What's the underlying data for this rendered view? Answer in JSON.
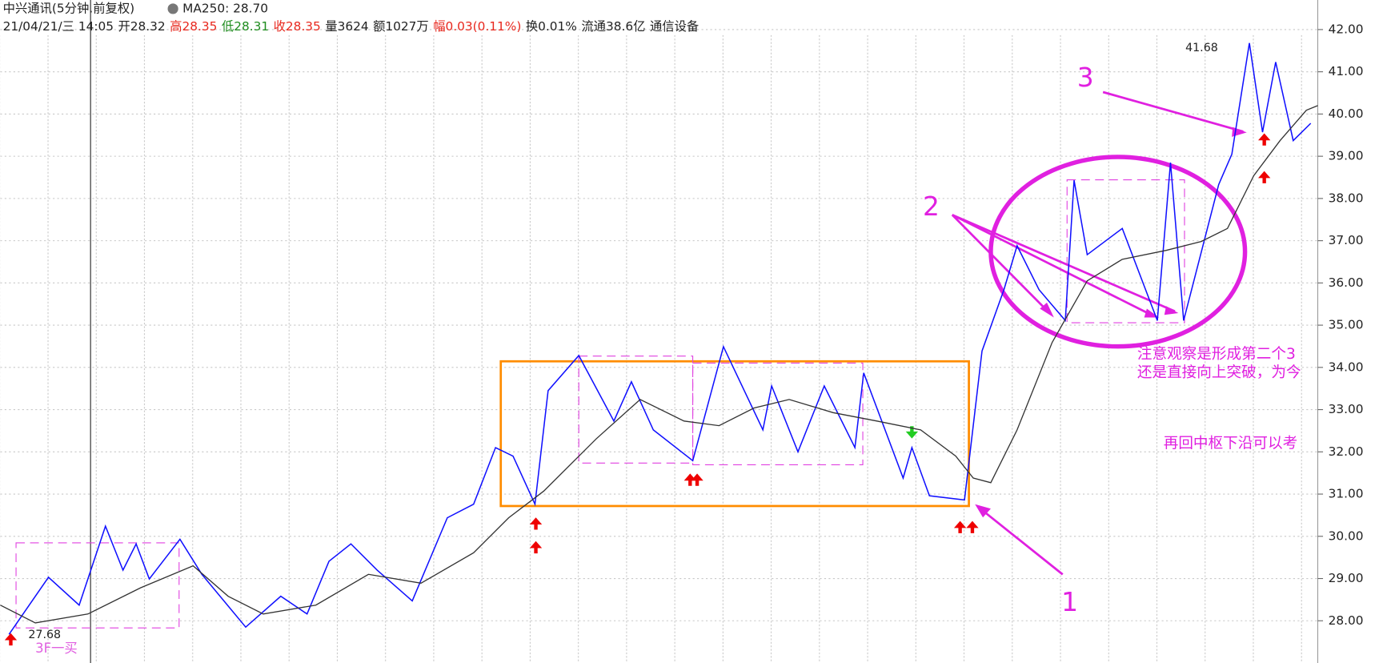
{
  "chart_data": {
    "type": "line",
    "title": "中兴通讯(5分钟.前复权)",
    "ma_label": "MA250: 28.70",
    "info": [
      {
        "text": "21/04/21/三 14:05",
        "color": "#222222"
      },
      {
        "text": "开28.32",
        "color": "#222222"
      },
      {
        "text": "高28.35",
        "color": "#e8281e"
      },
      {
        "text": "低28.31",
        "color": "#1e8c1e"
      },
      {
        "text": "收28.35",
        "color": "#e8281e"
      },
      {
        "text": "量3624",
        "color": "#222222"
      },
      {
        "text": "额1027万",
        "color": "#222222"
      },
      {
        "text": "幅0.03(0.11%)",
        "color": "#e8281e"
      },
      {
        "text": "换0.01%",
        "color": "#222222"
      },
      {
        "text": "流通38.6亿",
        "color": "#222222"
      },
      {
        "text": "通信设备",
        "color": "#222222"
      }
    ],
    "annotations": [
      "1",
      "2",
      "3",
      "注意观察是形成第二个3",
      "还是直接向上突破，为今",
      "再回中枢下沿可以考",
      "3F一买",
      "27.68",
      "41.68"
    ],
    "xlim": [
      0,
      1503
    ],
    "ylim": [
      27.0,
      42.7
    ],
    "yticks": [
      {
        "value": 28,
        "label": "28.00"
      },
      {
        "value": 29,
        "label": "29.00"
      },
      {
        "value": 30,
        "label": "30.00"
      },
      {
        "value": 31,
        "label": "31.00"
      },
      {
        "value": 32,
        "label": "32.00"
      },
      {
        "value": 33,
        "label": "33.00"
      },
      {
        "value": 34,
        "label": "34.00"
      },
      {
        "value": 35,
        "label": "35.00"
      },
      {
        "value": 36,
        "label": "36.00"
      },
      {
        "value": 37,
        "label": "37.00"
      },
      {
        "value": 38,
        "label": "38.00"
      },
      {
        "value": 39,
        "label": "39.00"
      },
      {
        "value": 40,
        "label": "40.00"
      },
      {
        "value": 41,
        "label": "41.00"
      },
      {
        "value": 42,
        "label": "42.00"
      }
    ],
    "grid": true,
    "series": [
      {
        "name": "price",
        "color": "#1010ff",
        "x": [
          10,
          55,
          90,
          120,
          140,
          155,
          170,
          205,
          230,
          280,
          320,
          350,
          375,
          400,
          430,
          470,
          510,
          540,
          565,
          585,
          610,
          625,
          660,
          700,
          720,
          745,
          790,
          825,
          870,
          880,
          910,
          940,
          975,
          985,
          1030,
          1040,
          1060,
          1100,
          1120,
          1145,
          1160,
          1185,
          1215,
          1225,
          1240,
          1280,
          1320,
          1335,
          1350,
          1390,
          1405,
          1425,
          1440,
          1455,
          1475,
          1495
        ],
        "values": [
          27.68,
          29.03,
          28.37,
          30.24,
          29.2,
          29.82,
          28.99,
          29.93,
          29.1,
          27.85,
          28.58,
          28.16,
          29.41,
          29.82,
          29.2,
          28.47,
          30.44,
          30.76,
          32.1,
          31.9,
          30.76,
          33.45,
          34.28,
          32.73,
          33.66,
          32.52,
          31.79,
          34.49,
          32.52,
          33.56,
          32.0,
          33.56,
          32.1,
          33.87,
          31.38,
          32.1,
          30.96,
          30.86,
          34.39,
          35.84,
          36.88,
          35.84,
          35.11,
          38.43,
          36.67,
          37.29,
          35.11,
          38.85,
          35.11,
          38.33,
          39.05,
          41.68,
          39.57,
          41.23,
          39.37,
          39.78
        ]
      },
      {
        "name": "MA250",
        "color": "#333333",
        "x": [
          0,
          40,
          100,
          160,
          220,
          260,
          300,
          360,
          420,
          480,
          540,
          580,
          620,
          680,
          730,
          780,
          820,
          860,
          900,
          950,
          1000,
          1050,
          1090,
          1110,
          1130,
          1160,
          1200,
          1240,
          1280,
          1330,
          1370,
          1400,
          1430,
          1460,
          1490,
          1503
        ],
        "values": [
          28.37,
          27.95,
          28.16,
          28.78,
          29.3,
          28.58,
          28.16,
          28.37,
          29.1,
          28.89,
          29.61,
          30.44,
          31.07,
          32.31,
          33.24,
          32.73,
          32.62,
          33.04,
          33.24,
          32.93,
          32.73,
          32.52,
          31.9,
          31.38,
          31.27,
          32.52,
          34.59,
          36.05,
          36.56,
          36.77,
          36.98,
          37.29,
          38.54,
          39.37,
          40.09,
          40.2
        ]
      }
    ]
  }
}
